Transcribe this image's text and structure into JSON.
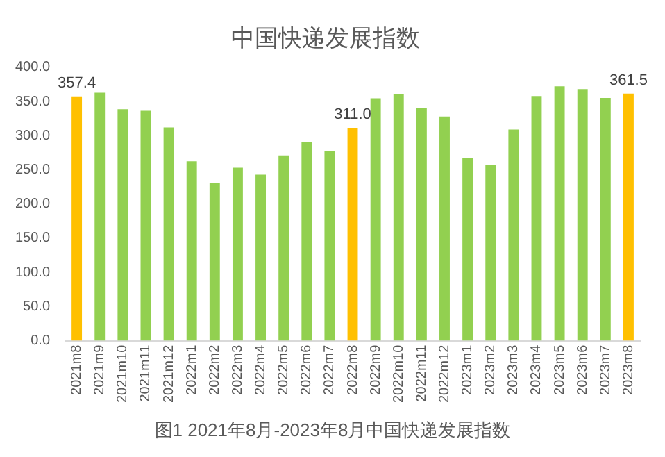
{
  "chart_data": {
    "type": "bar",
    "title": "中国快递发展指数",
    "categories": [
      "2021m8",
      "2021m9",
      "2021m10",
      "2021m11",
      "2021m12",
      "2022m1",
      "2022m2",
      "2022m3",
      "2022m4",
      "2022m5",
      "2022m6",
      "2022m7",
      "2022m8",
      "2022m9",
      "2022m10",
      "2022m11",
      "2022m12",
      "2023m1",
      "2023m2",
      "2023m3",
      "2023m4",
      "2023m5",
      "2023m6",
      "2023m7",
      "2023m8"
    ],
    "values": [
      357.4,
      362.7,
      338.6,
      336.4,
      312,
      262.5,
      231,
      253,
      242.8,
      271,
      291,
      277,
      311.0,
      354.7,
      360.5,
      340.8,
      328,
      267,
      256.7,
      309,
      358,
      372,
      368,
      355,
      361.5
    ],
    "colors": [
      "#ffc000",
      "#92d050",
      "#92d050",
      "#92d050",
      "#92d050",
      "#92d050",
      "#92d050",
      "#92d050",
      "#92d050",
      "#92d050",
      "#92d050",
      "#92d050",
      "#ffc000",
      "#92d050",
      "#92d050",
      "#92d050",
      "#92d050",
      "#92d050",
      "#92d050",
      "#92d050",
      "#92d050",
      "#92d050",
      "#92d050",
      "#92d050",
      "#ffc000"
    ],
    "value_labels": [
      "357.4",
      null,
      null,
      null,
      null,
      null,
      null,
      null,
      null,
      null,
      null,
      null,
      "311.0",
      null,
      null,
      null,
      null,
      null,
      null,
      null,
      null,
      null,
      null,
      null,
      "361.5"
    ],
    "ylim": [
      0,
      400
    ],
    "yticks": [
      {
        "value": 0,
        "label": "0.0"
      },
      {
        "value": 50,
        "label": "50.0"
      },
      {
        "value": 100,
        "label": "100.0"
      },
      {
        "value": 150,
        "label": "150.0"
      },
      {
        "value": 200,
        "label": "200.0"
      },
      {
        "value": 250,
        "label": "250.0"
      },
      {
        "value": 300,
        "label": "300.0"
      },
      {
        "value": 350,
        "label": "350.0"
      },
      {
        "value": 400,
        "label": "400.0"
      }
    ],
    "grid": false,
    "legend": false,
    "annotations": [
      "图1 2021年8月-2023年8月中国快递发展指数"
    ]
  }
}
